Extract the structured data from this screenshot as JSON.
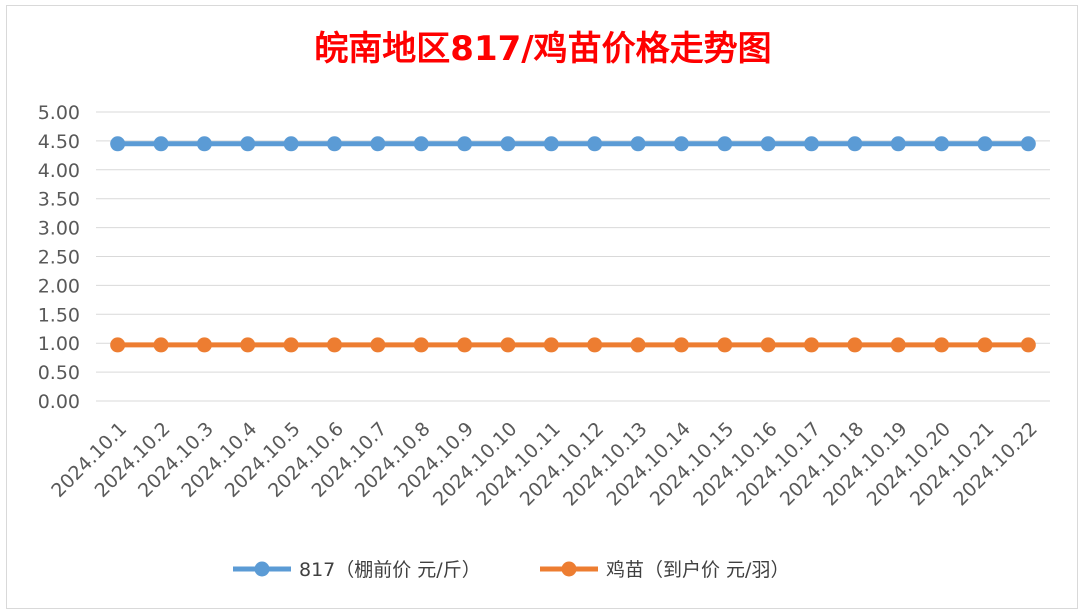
{
  "chart_data": {
    "type": "line",
    "title": "皖南地区817/鸡苗价格走势图",
    "xlabel": "",
    "ylabel": "",
    "categories": [
      "2024.10.1",
      "2024.10.2",
      "2024.10.3",
      "2024.10.4",
      "2024.10.5",
      "2024.10.6",
      "2024.10.7",
      "2024.10.8",
      "2024.10.9",
      "2024.10.10",
      "2024.10.11",
      "2024.10.12",
      "2024.10.13",
      "2024.10.14",
      "2024.10.15",
      "2024.10.16",
      "2024.10.17",
      "2024.10.18",
      "2024.10.19",
      "2024.10.20",
      "2024.10.21",
      "2024.10.22"
    ],
    "ylim": [
      0,
      5
    ],
    "yticks": [
      "0.00",
      "0.50",
      "1.00",
      "1.50",
      "2.00",
      "2.50",
      "3.00",
      "3.50",
      "4.00",
      "4.50",
      "5.00"
    ],
    "grid": true,
    "legend_position": "bottom",
    "series": [
      {
        "name": "817（棚前价 元/斤）",
        "color": "#5b9bd5",
        "values": [
          4.45,
          4.45,
          4.45,
          4.45,
          4.45,
          4.45,
          4.45,
          4.45,
          4.45,
          4.45,
          4.45,
          4.45,
          4.45,
          4.45,
          4.45,
          4.45,
          4.45,
          4.45,
          4.45,
          4.45,
          4.45,
          4.45
        ]
      },
      {
        "name": "鸡苗（到户价 元/羽）",
        "color": "#ed7d31",
        "values": [
          0.97,
          0.97,
          0.97,
          0.97,
          0.97,
          0.97,
          0.97,
          0.97,
          0.97,
          0.97,
          0.97,
          0.97,
          0.97,
          0.97,
          0.97,
          0.97,
          0.97,
          0.97,
          0.97,
          0.97,
          0.97,
          0.97
        ]
      }
    ]
  }
}
